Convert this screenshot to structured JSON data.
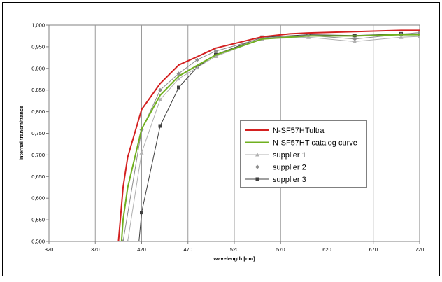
{
  "chart_data": {
    "type": "line",
    "title": "",
    "xlabel": "wavelength [nm]",
    "ylabel": "internal transmittance",
    "xlim": [
      320,
      720
    ],
    "ylim": [
      0.5,
      1.0
    ],
    "x_ticks": [
      "320",
      "370",
      "420",
      "470",
      "520",
      "570",
      "620",
      "670",
      "720"
    ],
    "y_ticks": [
      "0,500",
      "0,550",
      "0,600",
      "0,650",
      "0,700",
      "0,750",
      "0,800",
      "0,850",
      "0,900",
      "0,950",
      "1,000"
    ],
    "grid": "vertical",
    "legend_position": "center-right",
    "series": [
      {
        "name": "N-SF57HTultra",
        "color": "#d42020",
        "marker": "none",
        "points": [
          [
            390,
            0.4
          ],
          [
            395,
            0.5
          ],
          [
            400,
            0.625
          ],
          [
            405,
            0.695
          ],
          [
            420,
            0.805
          ],
          [
            440,
            0.865
          ],
          [
            460,
            0.908
          ],
          [
            480,
            0.927
          ],
          [
            500,
            0.947
          ],
          [
            550,
            0.973
          ],
          [
            580,
            0.98
          ],
          [
            600,
            0.982
          ],
          [
            650,
            0.985
          ],
          [
            700,
            0.988
          ],
          [
            720,
            0.988
          ]
        ]
      },
      {
        "name": "N-SF57HT catalog curve",
        "color": "#70b020",
        "marker": "none",
        "points": [
          [
            395,
            0.4
          ],
          [
            400,
            0.55
          ],
          [
            405,
            0.625
          ],
          [
            420,
            0.76
          ],
          [
            440,
            0.838
          ],
          [
            460,
            0.882
          ],
          [
            480,
            0.907
          ],
          [
            500,
            0.931
          ],
          [
            550,
            0.968
          ],
          [
            600,
            0.975
          ],
          [
            650,
            0.975
          ],
          [
            700,
            0.978
          ],
          [
            720,
            0.978
          ]
        ]
      },
      {
        "name": "supplier 1",
        "color": "#b0b0b0",
        "marker": "triangle",
        "points": [
          [
            400,
            0.4
          ],
          [
            405,
            0.5
          ],
          [
            420,
            0.705
          ],
          [
            440,
            0.828
          ],
          [
            460,
            0.876
          ],
          [
            480,
            0.902
          ],
          [
            500,
            0.928
          ],
          [
            550,
            0.968
          ],
          [
            600,
            0.972
          ],
          [
            650,
            0.962
          ],
          [
            700,
            0.972
          ],
          [
            720,
            0.974
          ]
        ]
      },
      {
        "name": "supplier 2",
        "color": "#8c8c8c",
        "marker": "diamond",
        "points": [
          [
            395,
            0.4
          ],
          [
            400,
            0.5
          ],
          [
            420,
            0.758
          ],
          [
            440,
            0.85
          ],
          [
            460,
            0.888
          ],
          [
            480,
            0.92
          ],
          [
            500,
            0.94
          ],
          [
            550,
            0.97
          ],
          [
            600,
            0.976
          ],
          [
            650,
            0.968
          ],
          [
            700,
            0.979
          ],
          [
            720,
            0.983
          ]
        ]
      },
      {
        "name": "supplier 3",
        "color": "#404040",
        "marker": "square",
        "points": [
          [
            415,
            0.45
          ],
          [
            420,
            0.567
          ],
          [
            440,
            0.767
          ],
          [
            460,
            0.856
          ],
          [
            480,
            0.903
          ],
          [
            500,
            0.932
          ],
          [
            550,
            0.972
          ],
          [
            600,
            0.978
          ],
          [
            650,
            0.976
          ],
          [
            700,
            0.98
          ],
          [
            720,
            0.98
          ]
        ]
      }
    ]
  }
}
